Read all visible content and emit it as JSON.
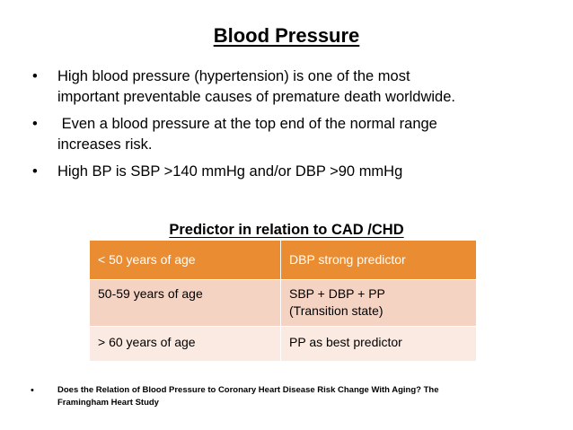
{
  "slide": {
    "title": "Blood Pressure",
    "bullets": [
      {
        "lines": [
          "High blood pressure (hypertension) is one of the most",
          "important preventable causes of premature death worldwide."
        ]
      },
      {
        "lines": [
          " Even a blood pressure at the top end of the normal range",
          "increases risk."
        ]
      },
      {
        "lines": [
          "High BP is SBP >140 mmHg and/or DBP >90 mmHg"
        ]
      }
    ],
    "table_heading": "Predictor in relation to CAD /CHD",
    "table": {
      "header": [
        "< 50 years of age",
        "DBP strong predictor"
      ],
      "rows": [
        {
          "age": "50-59 years of age",
          "predictor_lines": [
            "SBP + DBP + PP",
            "(Transition state)"
          ]
        },
        {
          "age": "> 60 years of age",
          "predictor_lines": [
            "PP as best predictor"
          ]
        }
      ],
      "colors": {
        "header_bg": "#e98c32",
        "row1_bg": "#f5d3c3",
        "row2_bg": "#fbeae2",
        "header_text": "#ffffff"
      }
    },
    "reference": {
      "bullet": "•",
      "lines": [
        "Does the Relation of Blood Pressure to Coronary Heart Disease Risk Change With Aging? The",
        "Framingham Heart Study"
      ]
    },
    "bullet_char": "•"
  }
}
